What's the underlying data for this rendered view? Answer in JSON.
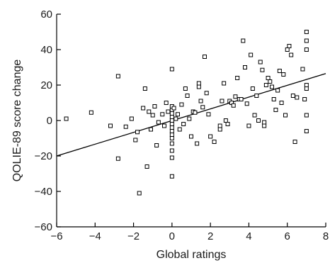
{
  "chart_data": {
    "type": "scatter",
    "xlabel": "Global ratings",
    "ylabel": "QOLIE-89 score change",
    "xlim": [
      -6,
      8
    ],
    "ylim": [
      -60,
      60
    ],
    "xticks": [
      -6,
      -4,
      -2,
      0,
      2,
      4,
      6,
      8
    ],
    "yticks": [
      -60,
      -40,
      -20,
      0,
      20,
      40,
      60
    ],
    "xtick_labels": [
      "−6",
      "−4",
      "−2",
      "0",
      "2",
      "4",
      "6",
      "8"
    ],
    "ytick_labels": [
      "−60",
      "−40",
      "−20",
      "0",
      "20",
      "40",
      "60"
    ],
    "grid": false,
    "fit_line": {
      "x": [
        -6,
        8
      ],
      "y": [
        -20,
        26.5
      ]
    },
    "points": [
      [
        -5.5,
        1
      ],
      [
        -4.2,
        4.5
      ],
      [
        -3.2,
        -3
      ],
      [
        -2.8,
        25
      ],
      [
        -2.8,
        -21.5
      ],
      [
        -2.4,
        -3.5
      ],
      [
        -2.1,
        1
      ],
      [
        -1.9,
        -11
      ],
      [
        -1.8,
        -6.5
      ],
      [
        -1.7,
        -41
      ],
      [
        -1.5,
        7
      ],
      [
        -1.4,
        18
      ],
      [
        -1.3,
        -26
      ],
      [
        -1.2,
        5
      ],
      [
        -1.1,
        -5
      ],
      [
        -1.0,
        3
      ],
      [
        -0.9,
        8
      ],
      [
        -0.8,
        -14
      ],
      [
        -0.7,
        -1
      ],
      [
        -0.5,
        3.5
      ],
      [
        -0.4,
        -3
      ],
      [
        -0.3,
        10
      ],
      [
        -0.2,
        5
      ],
      [
        0,
        29
      ],
      [
        0,
        8
      ],
      [
        0,
        6
      ],
      [
        0,
        4
      ],
      [
        0,
        2
      ],
      [
        0,
        0
      ],
      [
        0,
        -2
      ],
      [
        0,
        -4
      ],
      [
        0,
        -6
      ],
      [
        0,
        -8
      ],
      [
        0,
        -10
      ],
      [
        0,
        -13
      ],
      [
        0,
        -17
      ],
      [
        0,
        -21
      ],
      [
        0,
        -31.5
      ],
      [
        0.1,
        7
      ],
      [
        0.2,
        1
      ],
      [
        0.3,
        3.5
      ],
      [
        0.4,
        -5
      ],
      [
        0.5,
        9
      ],
      [
        0.6,
        -2
      ],
      [
        0.7,
        18
      ],
      [
        0.8,
        14
      ],
      [
        0.9,
        1
      ],
      [
        1.0,
        -9
      ],
      [
        1.1,
        5
      ],
      [
        1.2,
        4.5
      ],
      [
        1.3,
        -13
      ],
      [
        1.4,
        21
      ],
      [
        1.4,
        19
      ],
      [
        1.5,
        11
      ],
      [
        1.6,
        7.5
      ],
      [
        1.7,
        36
      ],
      [
        1.8,
        15.5
      ],
      [
        1.9,
        3.5
      ],
      [
        2.0,
        -9
      ],
      [
        2.2,
        -12
      ],
      [
        2.5,
        -5
      ],
      [
        2.5,
        -3
      ],
      [
        2.6,
        11
      ],
      [
        2.7,
        21
      ],
      [
        2.8,
        0
      ],
      [
        2.9,
        -2
      ],
      [
        3.0,
        11
      ],
      [
        3.1,
        10
      ],
      [
        3.2,
        8.5
      ],
      [
        3.3,
        13.5
      ],
      [
        3.4,
        24
      ],
      [
        3.5,
        12
      ],
      [
        3.6,
        12
      ],
      [
        3.7,
        45
      ],
      [
        3.8,
        30
      ],
      [
        3.9,
        9.5
      ],
      [
        4.0,
        -3
      ],
      [
        4.1,
        37
      ],
      [
        4.2,
        18
      ],
      [
        4.3,
        3
      ],
      [
        4.4,
        14
      ],
      [
        4.5,
        0
      ],
      [
        4.6,
        33
      ],
      [
        4.7,
        28.5
      ],
      [
        4.8,
        -3
      ],
      [
        4.8,
        -1
      ],
      [
        4.9,
        20
      ],
      [
        5.0,
        24
      ],
      [
        5.1,
        22
      ],
      [
        5.2,
        19
      ],
      [
        5.3,
        12
      ],
      [
        5.4,
        6
      ],
      [
        5.5,
        17
      ],
      [
        5.6,
        28
      ],
      [
        5.7,
        10
      ],
      [
        5.8,
        26
      ],
      [
        5.9,
        3
      ],
      [
        6.0,
        40
      ],
      [
        6.1,
        42
      ],
      [
        6.2,
        37
      ],
      [
        6.3,
        14
      ],
      [
        6.4,
        -12
      ],
      [
        6.5,
        13
      ],
      [
        6.8,
        29
      ],
      [
        6.9,
        12
      ],
      [
        7.0,
        50
      ],
      [
        7.0,
        45
      ],
      [
        7.0,
        40
      ],
      [
        7.0,
        20
      ],
      [
        7.0,
        18
      ],
      [
        7.0,
        3
      ],
      [
        7.0,
        -6
      ]
    ]
  }
}
